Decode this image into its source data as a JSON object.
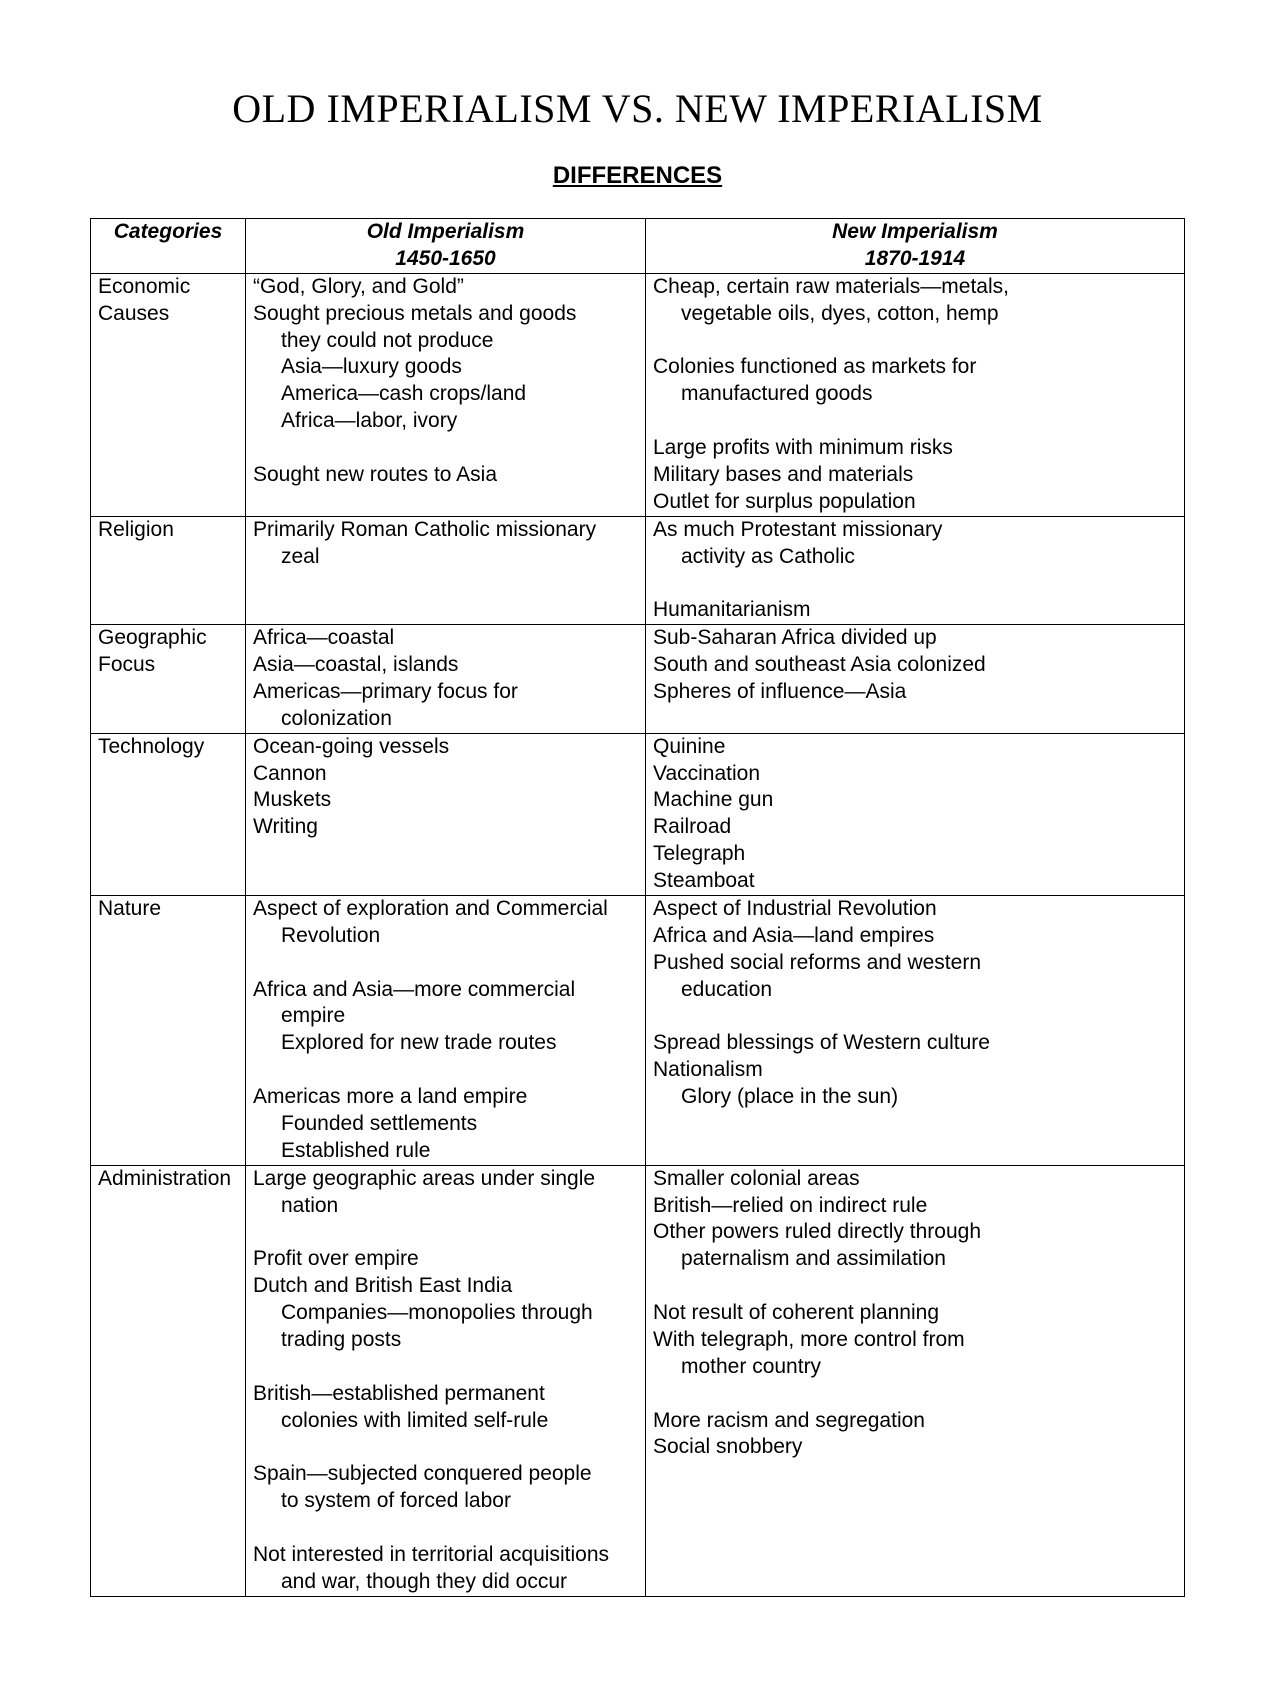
{
  "title": "OLD IMPERIALISM VS. NEW IMPERIALISM",
  "subtitle": "DIFFERENCES",
  "headers": {
    "categories": "Categories",
    "old_label": "Old Imperialism",
    "old_date": "1450-1650",
    "new_label": "New Imperialism",
    "new_date": "1870-1914"
  },
  "rows": [
    {
      "category": "Economic Causes",
      "old": [
        {
          "t": "“God, Glory, and Gold”",
          "i": 0
        },
        {
          "t": "Sought precious metals and goods",
          "i": 0
        },
        {
          "t": "they could not produce",
          "i": 1
        },
        {
          "t": "Asia—luxury goods",
          "i": 1
        },
        {
          "t": "America—cash crops/land",
          "i": 1
        },
        {
          "t": "Africa—labor, ivory",
          "i": 1
        },
        {
          "t": "Sought new routes to Asia",
          "i": 0
        }
      ],
      "new": [
        {
          "t": "Cheap, certain raw materials—metals,",
          "i": 0
        },
        {
          "t": "vegetable oils, dyes, cotton, hemp",
          "i": 1
        },
        {
          "t": "Colonies functioned as markets for",
          "i": 0
        },
        {
          "t": "manufactured goods",
          "i": 1
        },
        {
          "t": "Large profits with minimum risks",
          "i": 0
        },
        {
          "t": "Military bases and materials",
          "i": 0
        },
        {
          "t": "Outlet for surplus population",
          "i": 0
        }
      ]
    },
    {
      "category": "Religion",
      "old": [
        {
          "t": "Primarily Roman Catholic missionary",
          "i": 0
        },
        {
          "t": "zeal",
          "i": 1
        }
      ],
      "new": [
        {
          "t": "As much Protestant missionary",
          "i": 0
        },
        {
          "t": "activity as Catholic",
          "i": 1
        },
        {
          "t": "Humanitarianism",
          "i": 0
        }
      ]
    },
    {
      "category": "Geographic Focus",
      "old": [
        {
          "t": "Africa—coastal",
          "i": 0
        },
        {
          "t": "Asia—coastal, islands",
          "i": 0
        },
        {
          "t": "Americas—primary focus for",
          "i": 0
        },
        {
          "t": "colonization",
          "i": 1
        }
      ],
      "new": [
        {
          "t": "Sub-Saharan Africa divided up",
          "i": 0
        },
        {
          "t": "South and southeast Asia colonized",
          "i": 0
        },
        {
          "t": "Spheres of influence—Asia",
          "i": 0
        }
      ]
    },
    {
      "category": "Technology",
      "old": [
        {
          "t": "Ocean-going vessels",
          "i": 0
        },
        {
          "t": "Cannon",
          "i": 0
        },
        {
          "t": "Muskets",
          "i": 0
        },
        {
          "t": "Writing",
          "i": 0
        }
      ],
      "new": [
        {
          "t": "Quinine",
          "i": 0
        },
        {
          "t": "Vaccination",
          "i": 0
        },
        {
          "t": "Machine gun",
          "i": 0
        },
        {
          "t": "Railroad",
          "i": 0
        },
        {
          "t": "Telegraph",
          "i": 0
        },
        {
          "t": "Steamboat",
          "i": 0
        }
      ]
    },
    {
      "category": "Nature",
      "old": [
        {
          "t": "Aspect of exploration and Commercial",
          "i": 0
        },
        {
          "t": "Revolution",
          "i": 1
        },
        {
          "t": "Africa and Asia—more commercial",
          "i": 0
        },
        {
          "t": "empire",
          "i": 1
        },
        {
          "t": "Explored for new trade routes",
          "i": 1
        },
        {
          "t": "Americas more a land empire",
          "i": 0
        },
        {
          "t": "Founded settlements",
          "i": 1
        },
        {
          "t": "Established rule",
          "i": 1
        }
      ],
      "new": [
        {
          "t": "Aspect of Industrial Revolution",
          "i": 0
        },
        {
          "t": "Africa and Asia—land empires",
          "i": 0
        },
        {
          "t": "Pushed social reforms and western",
          "i": 0
        },
        {
          "t": "education",
          "i": 1
        },
        {
          "t": "Spread blessings of Western culture",
          "i": 0
        },
        {
          "t": "Nationalism",
          "i": 0
        },
        {
          "t": "Glory (place in the sun)",
          "i": 1
        }
      ]
    },
    {
      "category": "Administration",
      "old": [
        {
          "t": "Large geographic areas under single",
          "i": 0
        },
        {
          "t": "nation",
          "i": 1
        },
        {
          "t": "Profit over empire",
          "i": 0
        },
        {
          "t": "Dutch and British East India",
          "i": 0
        },
        {
          "t": "Companies—monopolies through",
          "i": 1
        },
        {
          "t": "trading posts",
          "i": 1
        },
        {
          "t": "British—established permanent",
          "i": 0
        },
        {
          "t": "colonies with limited self-rule",
          "i": 1
        },
        {
          "t": "Spain—subjected conquered people",
          "i": 0
        },
        {
          "t": "to system of forced labor",
          "i": 1
        },
        {
          "t": "Not interested in territorial acquisitions",
          "i": 0
        },
        {
          "t": "and war, though they did occur",
          "i": 1
        }
      ],
      "new": [
        {
          "t": "Smaller colonial areas",
          "i": 0
        },
        {
          "t": "British—relied on indirect rule",
          "i": 0
        },
        {
          "t": "Other powers ruled directly through",
          "i": 0
        },
        {
          "t": "paternalism and assimilation",
          "i": 1
        },
        {
          "t": "Not result of coherent planning",
          "i": 0
        },
        {
          "t": "With telegraph, more control from",
          "i": 0
        },
        {
          "t": "mother country",
          "i": 1
        },
        {
          "t": "More racism and segregation",
          "i": 0
        },
        {
          "t": "Social snobbery",
          "i": 0
        }
      ]
    }
  ]
}
